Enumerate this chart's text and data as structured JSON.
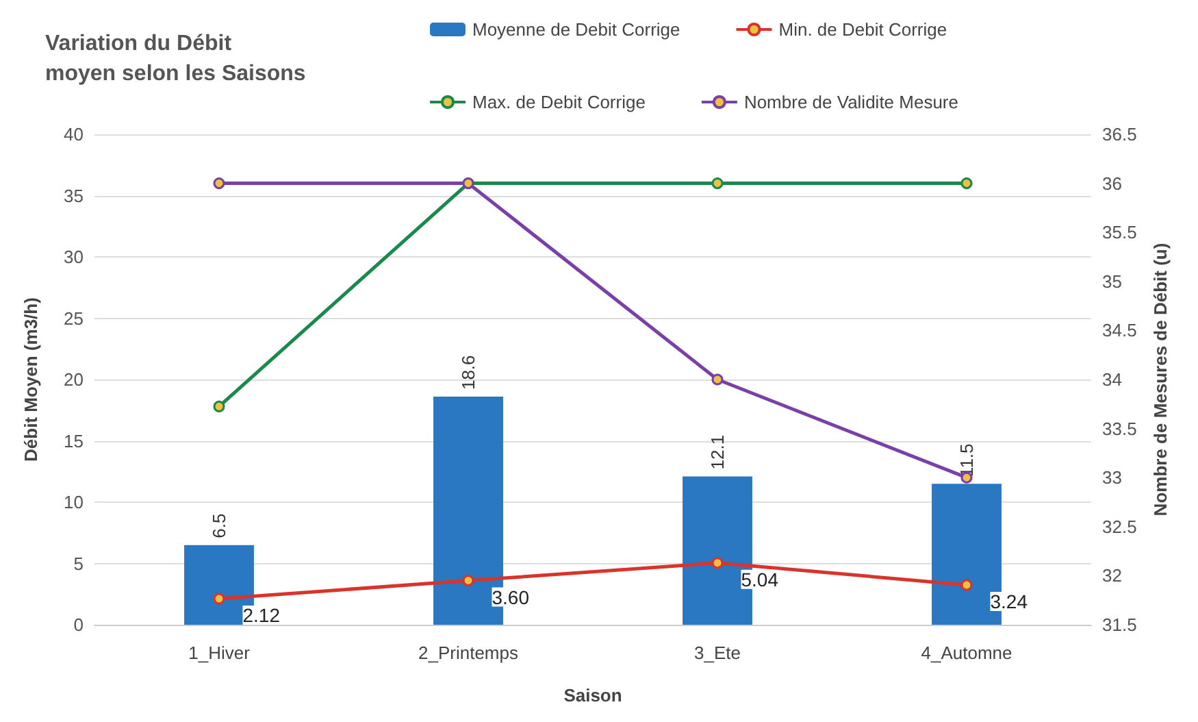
{
  "chart_data": {
    "type": "bar",
    "title": "Variation du Débit\nmoyen selon les Saisons",
    "xlabel": "Saison",
    "ylabel": "Débit Moyen (m3/h)",
    "y2label": "Nombre de Mesures de Débit (u)",
    "categories": [
      "1_Hiver",
      "2_Printemps",
      "3_Ete",
      "4_Automne"
    ],
    "series": [
      {
        "name": "Moyenne de Debit Corrige",
        "color": "#2a78c2",
        "values": [
          6.5,
          18.6,
          12.1,
          11.5
        ],
        "value_labels": [
          "6.5",
          "18.6",
          "12.1",
          "11.5"
        ]
      },
      {
        "name": "Min. de Debit Corrige",
        "type": "line",
        "color": "#d9342b",
        "values": [
          2.12,
          3.6,
          5.04,
          3.24
        ],
        "value_labels": [
          "2.12",
          "3.60",
          "5.04",
          "3.24"
        ]
      },
      {
        "name": "Max. de Debit Corrige",
        "type": "line",
        "color": "#1a8a4a",
        "values": [
          17.8,
          36,
          36,
          36
        ]
      },
      {
        "name": "Nombre de Validite Mesure",
        "type": "line",
        "color": "#7b3fa8",
        "axis": "y2",
        "values": [
          36,
          36,
          34,
          33
        ]
      }
    ],
    "ylim": [
      0,
      40
    ],
    "yticks": [
      0,
      5,
      10,
      15,
      20,
      25,
      30,
      35,
      40
    ],
    "y2lim": [
      31.5,
      36.5
    ],
    "y2ticks": [
      31.5,
      32,
      32.5,
      33,
      33.5,
      34,
      34.5,
      35,
      35.5,
      36,
      36.5
    ],
    "grid": "y",
    "legend": "top right",
    "marker": "circle"
  }
}
